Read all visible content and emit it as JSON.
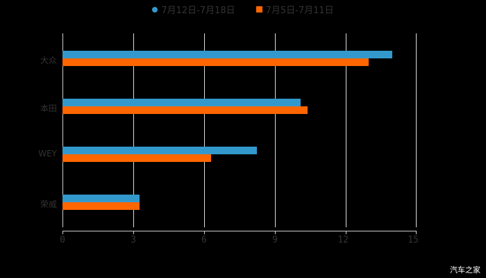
{
  "chart_data": {
    "type": "bar",
    "orientation": "horizontal",
    "title": "",
    "categories": [
      "大众",
      "本田",
      "WEY",
      "荣威"
    ],
    "series": [
      {
        "name": "7月12日-7月18日",
        "color": "#3399CC",
        "values": [
          14.0,
          10.1,
          8.26,
          3.26
        ]
      },
      {
        "name": "7月5日-7月11日",
        "color": "#FF6600",
        "values": [
          13.0,
          10.4,
          6.3,
          3.26
        ]
      }
    ],
    "xlabel": "",
    "ylabel": "",
    "xlim": [
      0,
      15
    ],
    "x_ticks": [
      "0",
      "3",
      "6",
      "9",
      "12",
      "15"
    ],
    "grid": true,
    "legend_position": "top"
  },
  "legend": {
    "s0": "7月12日-7月18日",
    "s1": "7月5日-7月11日"
  },
  "categories": [
    "大众",
    "本田",
    "WEY",
    "荣威"
  ],
  "ticks": [
    "0",
    "3",
    "6",
    "9",
    "12",
    "15"
  ],
  "watermark": "汽车之家"
}
